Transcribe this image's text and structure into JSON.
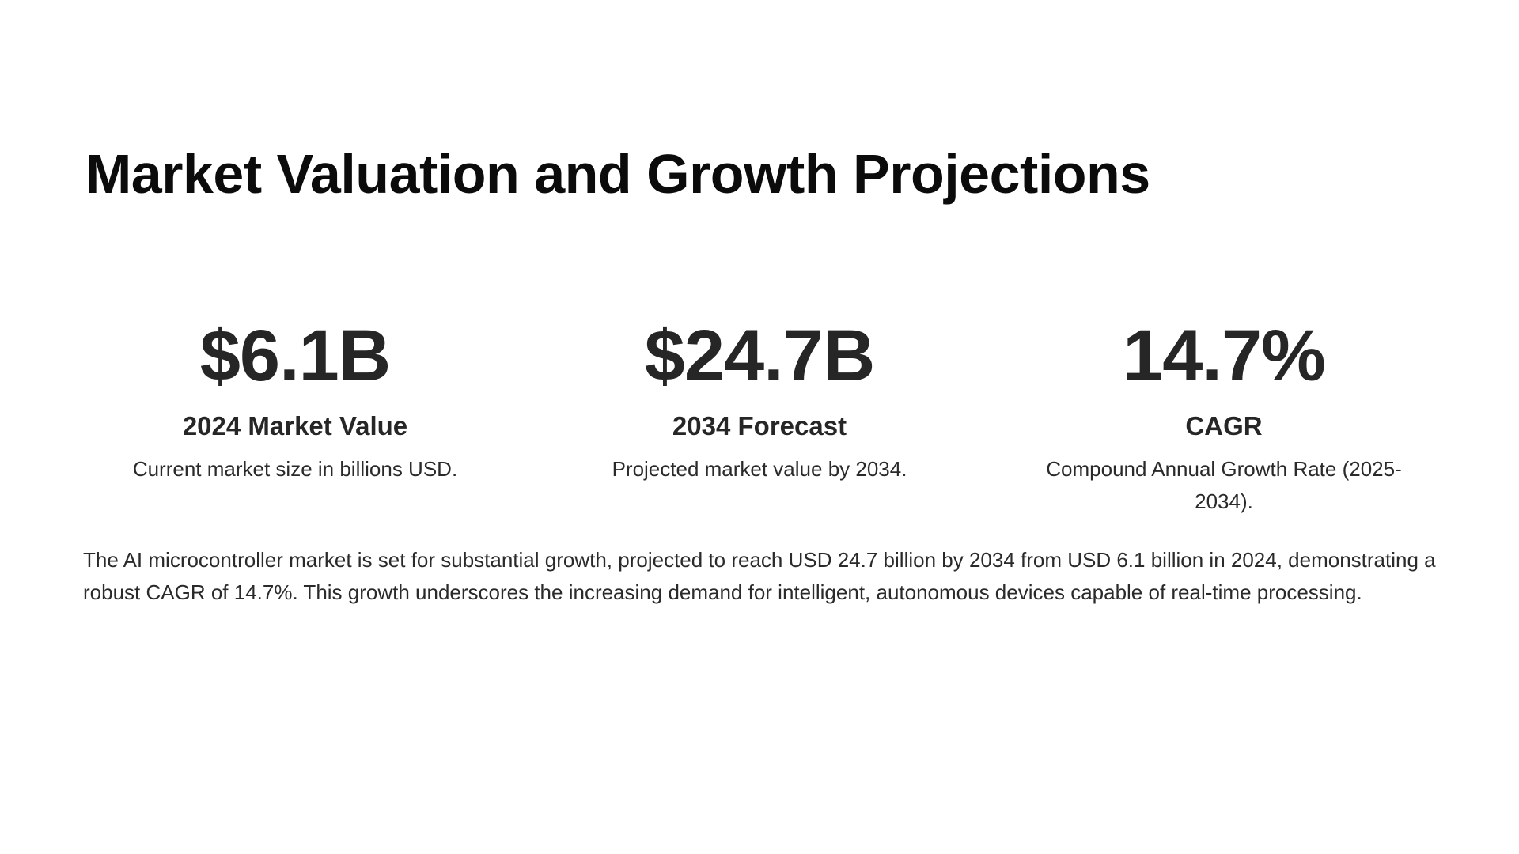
{
  "title": "Market Valuation and Growth Projections",
  "stats": [
    {
      "value": "$6.1B",
      "label": "2024 Market Value",
      "description": "Current market size in billions USD."
    },
    {
      "value": "$24.7B",
      "label": "2034 Forecast",
      "description": "Projected market value by 2034."
    },
    {
      "value": "14.7%",
      "label": "CAGR",
      "description": "Compound Annual Growth Rate (2025-2034)."
    }
  ],
  "summary": "The AI microcontroller market is set for substantial growth, projected to reach USD 24.7 billion by 2034 from USD 6.1 billion in 2024, demonstrating a robust CAGR of 14.7%. This growth underscores the increasing demand for intelligent, autonomous devices capable of real-time processing.",
  "colors": {
    "background": "#ffffff",
    "title": "#0b0b0b",
    "text": "#272727"
  }
}
